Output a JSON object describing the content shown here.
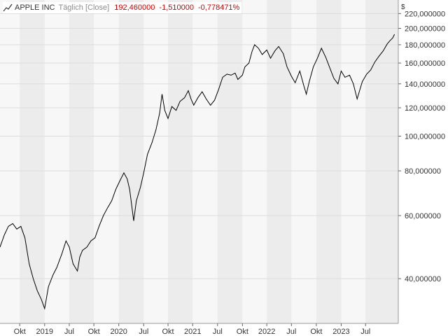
{
  "legend": {
    "symbol": "APPLE INC",
    "period": "Täglich [Close]",
    "values": "192,460000  -1,510000  -0,778471%"
  },
  "currency": "$",
  "colors": {
    "line": "#000000",
    "band_alt": "#ececec",
    "band": "#f7f7f7",
    "grid": "#dddddd",
    "legend_values": "#cc0000"
  },
  "chart_data": {
    "type": "line",
    "yscale": "log",
    "ylim": [
      30,
      240
    ],
    "y_ticks": [
      {
        "value": 220,
        "label": "220,000000"
      },
      {
        "value": 200,
        "label": "200,000000"
      },
      {
        "value": 180,
        "label": "180,000000"
      },
      {
        "value": 160,
        "label": "160,000000"
      },
      {
        "value": 140,
        "label": "140,000000"
      },
      {
        "value": 120,
        "label": "120,000000"
      },
      {
        "value": 100,
        "label": "100,000000"
      },
      {
        "value": 80,
        "label": "80,000000"
      },
      {
        "value": 60,
        "label": "60,000000"
      },
      {
        "value": 40,
        "label": "40,000000"
      }
    ],
    "xlim": [
      "2019-07-20",
      "2023-07-31"
    ],
    "x_ticks": [
      {
        "date": "2019-10-01",
        "label": "Okt"
      },
      {
        "date": "2020-01-01",
        "label": "2019"
      },
      {
        "date": "2020-04-01",
        "label": "Jul"
      },
      {
        "date": "2020-07-01",
        "label": "Okt"
      },
      {
        "date": "2020-10-01",
        "label": "2020"
      },
      {
        "date": "2021-01-01",
        "label": "Jul"
      },
      {
        "date": "2021-04-01",
        "label": "Okt"
      },
      {
        "date": "2021-07-01",
        "label": "2021"
      },
      {
        "date": "2021-10-01",
        "label": "Jul"
      },
      {
        "date": "2022-01-01",
        "label": "Okt"
      },
      {
        "date": "2022-04-01",
        "label": "2022"
      },
      {
        "date": "2022-07-01",
        "label": "Jul"
      },
      {
        "date": "2022-10-01",
        "label": "Okt"
      },
      {
        "date": "2023-01-01",
        "label": "2023"
      },
      {
        "date": "2023-04-01",
        "label": "Jul"
      }
    ],
    "series": [
      {
        "points": [
          [
            "2019-07-20",
            49
          ],
          [
            "2019-08-05",
            53
          ],
          [
            "2019-08-20",
            56
          ],
          [
            "2019-09-05",
            57
          ],
          [
            "2019-09-20",
            55
          ],
          [
            "2019-10-05",
            56
          ],
          [
            "2019-10-20",
            52
          ],
          [
            "2019-11-05",
            44
          ],
          [
            "2019-11-20",
            40
          ],
          [
            "2019-12-05",
            37
          ],
          [
            "2019-12-20",
            35
          ],
          [
            "2020-01-01",
            33
          ],
          [
            "2020-01-15",
            38
          ],
          [
            "2020-02-01",
            41
          ],
          [
            "2020-02-15",
            43
          ],
          [
            "2020-03-05",
            47
          ],
          [
            "2020-03-20",
            51
          ],
          [
            "2020-04-01",
            49
          ],
          [
            "2020-04-15",
            44
          ],
          [
            "2020-05-01",
            42
          ],
          [
            "2020-05-10",
            46
          ],
          [
            "2020-05-20",
            48
          ],
          [
            "2020-06-05",
            49
          ],
          [
            "2020-06-20",
            51
          ],
          [
            "2020-07-05",
            52
          ],
          [
            "2020-07-20",
            56
          ],
          [
            "2020-08-05",
            60
          ],
          [
            "2020-08-20",
            63
          ],
          [
            "2020-09-05",
            66
          ],
          [
            "2020-09-20",
            71
          ],
          [
            "2020-10-05",
            75
          ],
          [
            "2020-10-20",
            79
          ],
          [
            "2020-11-01",
            76
          ],
          [
            "2020-11-10",
            71
          ],
          [
            "2020-11-18",
            64
          ],
          [
            "2020-11-25",
            58
          ],
          [
            "2020-12-05",
            66
          ],
          [
            "2020-12-20",
            72
          ],
          [
            "2021-01-01",
            79
          ],
          [
            "2021-01-15",
            89
          ],
          [
            "2021-02-01",
            96
          ],
          [
            "2021-02-15",
            104
          ],
          [
            "2021-03-01",
            116
          ],
          [
            "2021-03-10",
            131
          ],
          [
            "2021-03-20",
            118
          ],
          [
            "2021-04-01",
            112
          ],
          [
            "2021-04-15",
            121
          ],
          [
            "2021-05-01",
            118
          ],
          [
            "2021-05-15",
            125
          ],
          [
            "2021-06-01",
            128
          ],
          [
            "2021-06-15",
            134
          ],
          [
            "2021-06-25",
            127
          ],
          [
            "2021-07-05",
            122
          ],
          [
            "2021-07-20",
            128
          ],
          [
            "2021-08-05",
            133
          ],
          [
            "2021-08-20",
            127
          ],
          [
            "2021-09-05",
            122
          ],
          [
            "2021-09-20",
            126
          ],
          [
            "2021-10-05",
            135
          ],
          [
            "2021-10-20",
            146
          ],
          [
            "2021-11-05",
            149
          ],
          [
            "2021-11-20",
            148
          ],
          [
            "2021-12-05",
            150
          ],
          [
            "2021-12-15",
            144
          ],
          [
            "2022-01-01",
            148
          ],
          [
            "2022-01-10",
            156
          ],
          [
            "2022-01-25",
            160
          ],
          [
            "2022-02-05",
            172
          ],
          [
            "2022-02-15",
            180
          ],
          [
            "2022-03-01",
            176
          ],
          [
            "2022-03-15",
            169
          ],
          [
            "2022-04-01",
            174
          ],
          [
            "2022-04-15",
            165
          ],
          [
            "2022-05-01",
            173
          ],
          [
            "2022-05-15",
            178
          ],
          [
            "2022-06-01",
            170
          ],
          [
            "2022-06-15",
            156
          ],
          [
            "2022-07-01",
            147
          ],
          [
            "2022-07-15",
            141
          ],
          [
            "2022-08-01",
            152
          ],
          [
            "2022-08-15",
            139
          ],
          [
            "2022-08-25",
            131
          ],
          [
            "2022-09-05",
            142
          ],
          [
            "2022-09-20",
            156
          ],
          [
            "2022-10-05",
            165
          ],
          [
            "2022-10-20",
            176
          ],
          [
            "2022-11-05",
            166
          ],
          [
            "2022-11-20",
            155
          ],
          [
            "2022-12-05",
            145
          ],
          [
            "2022-12-20",
            140
          ],
          [
            "2023-01-01",
            152
          ],
          [
            "2023-01-15",
            146
          ],
          [
            "2023-02-01",
            148
          ],
          [
            "2023-02-15",
            140
          ],
          [
            "2023-03-01",
            127
          ],
          [
            "2023-03-10",
            134
          ],
          [
            "2023-03-20",
            142
          ],
          [
            "2023-04-05",
            149
          ],
          [
            "2023-04-20",
            153
          ],
          [
            "2023-05-05",
            161
          ],
          [
            "2023-05-20",
            167
          ],
          [
            "2023-06-05",
            173
          ],
          [
            "2023-06-20",
            181
          ],
          [
            "2023-07-01",
            185
          ],
          [
            "2023-07-10",
            188
          ],
          [
            "2023-07-17",
            192.46
          ]
        ]
      }
    ]
  }
}
